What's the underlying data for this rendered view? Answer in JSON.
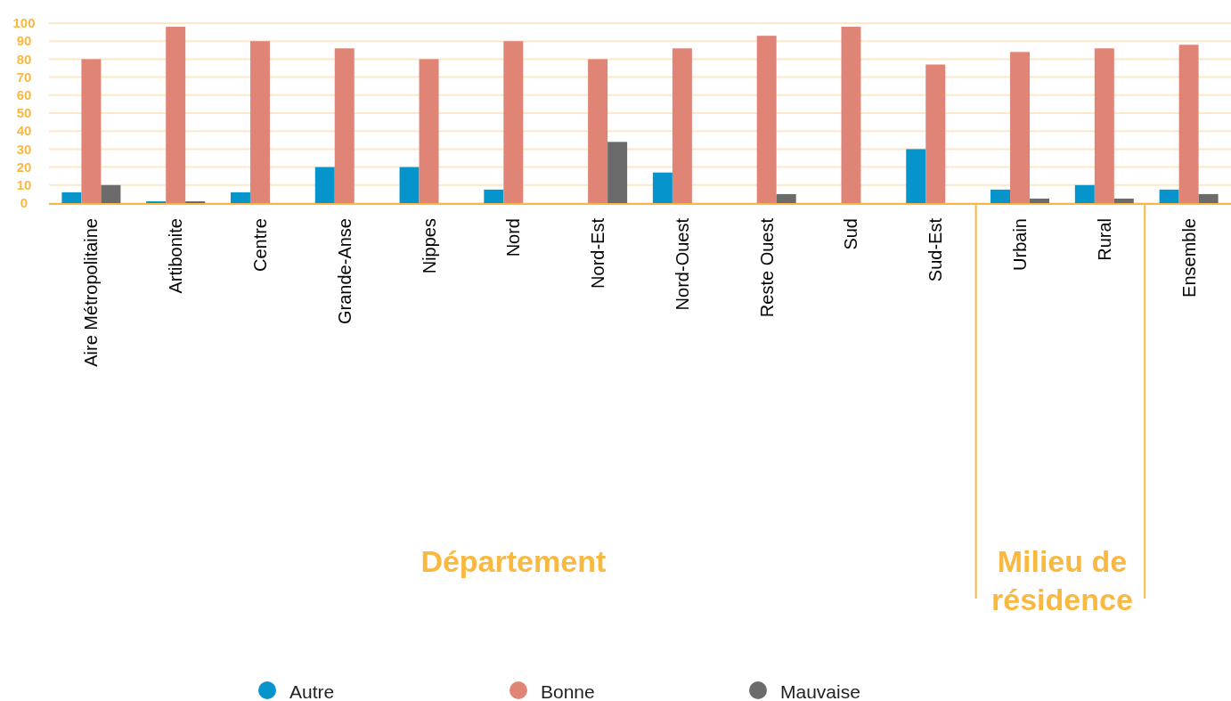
{
  "chart_data": {
    "type": "bar",
    "categories": [
      "Aire Métropolitaine",
      "Artibonite",
      "Centre",
      "Grande-Anse",
      "Nippes",
      "Nord",
      "Nord-Est",
      "Nord-Ouest",
      "Reste Ouest",
      "Sud",
      "Sud-Est",
      "Urbain",
      "Rural",
      "Ensemble"
    ],
    "series": [
      {
        "name": "Autre",
        "color": "#0595cc",
        "values": [
          6,
          1,
          6,
          20,
          20,
          7.5,
          null,
          17,
          null,
          null,
          30,
          7.5,
          10,
          7.5
        ]
      },
      {
        "name": "Bonne",
        "color": "#e08576",
        "values": [
          80,
          98,
          90,
          86,
          80,
          90,
          80,
          86,
          93,
          98,
          77,
          84,
          86,
          88
        ]
      },
      {
        "name": "Mauvaise",
        "color": "#6b6b6b",
        "values": [
          10,
          1,
          null,
          null,
          null,
          null,
          34,
          null,
          5,
          null,
          null,
          2.5,
          2.5,
          5
        ]
      }
    ],
    "ylim": [
      0,
      100
    ],
    "yticks": [
      0,
      10,
      20,
      30,
      40,
      50,
      60,
      70,
      80,
      90,
      100
    ],
    "grid": "y",
    "legend": "bottom",
    "annotations": [
      "Département",
      "Milieu de résidence"
    ]
  }
}
